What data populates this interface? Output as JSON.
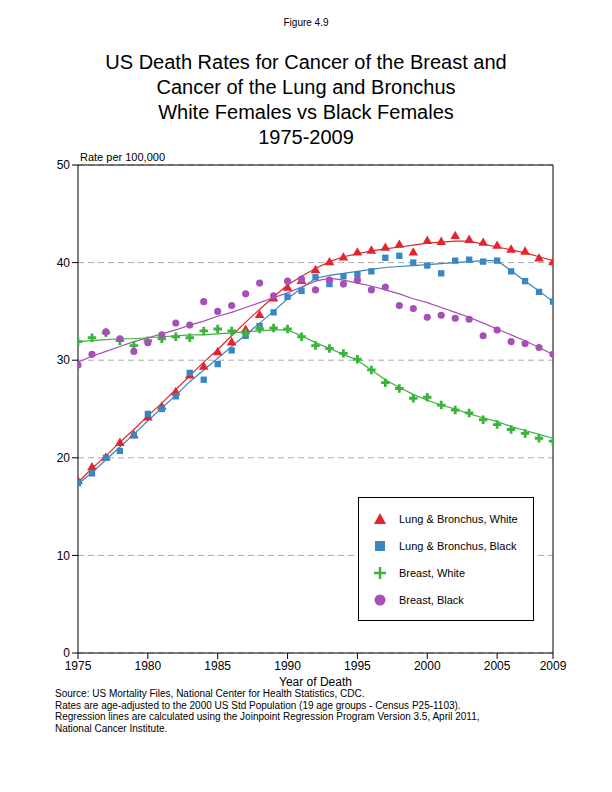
{
  "chart_data": {
    "type": "scatter",
    "figure_label": "Figure 4.9",
    "title": [
      "US Death Rates for Cancer of the Breast and",
      "Cancer of the Lung and Bronchus",
      "White Females vs Black Females",
      "1975-2009"
    ],
    "y_label": "Rate per 100,000",
    "x_label": "Year of Death",
    "notes": [
      "Source: US Mortality Files, National Center for Health Statistics, CDC.",
      "Rates are age-adjusted to the 2000 US Std Population (19 age groups - Census P25-1103).",
      "Regression lines are calculated using the Joinpoint Regression Program Version 3.5, April 2011,",
      "National Cancer Institute."
    ],
    "x": [
      1975,
      1976,
      1977,
      1978,
      1979,
      1980,
      1981,
      1982,
      1983,
      1984,
      1985,
      1986,
      1987,
      1988,
      1989,
      1990,
      1991,
      1992,
      1993,
      1994,
      1995,
      1996,
      1997,
      1998,
      1999,
      2000,
      2001,
      2002,
      2003,
      2004,
      2005,
      2006,
      2007,
      2008,
      2009
    ],
    "xlim": [
      1975,
      2009
    ],
    "xticks": [
      1975,
      1980,
      1985,
      1990,
      1995,
      2000,
      2005,
      2009
    ],
    "ylim": [
      0,
      50
    ],
    "yticks": [
      0,
      10,
      20,
      30,
      40,
      50
    ],
    "grid": true,
    "legend": "lower right",
    "series": [
      {
        "name": "Lung & Bronchus, White",
        "color": "#e3242b",
        "marker": "triangle",
        "values": [
          17.6,
          19.0,
          20.0,
          21.5,
          22.3,
          24.1,
          25.2,
          26.7,
          28.4,
          29.3,
          30.8,
          31.8,
          33.1,
          34.6,
          36.3,
          37.4,
          38.1,
          39.2,
          40.0,
          40.5,
          41.0,
          41.2,
          41.5,
          41.8,
          41.0,
          42.2,
          42.1,
          42.7,
          42.3,
          42.0,
          41.7,
          41.3,
          41.1,
          40.4,
          40.0
        ],
        "fit": [
          17.5,
          18.9,
          20.2,
          21.6,
          22.9,
          24.3,
          25.6,
          27.0,
          28.4,
          29.8,
          31.1,
          32.5,
          33.9,
          35.2,
          36.5,
          37.7,
          38.6,
          39.4,
          40.1,
          40.6,
          40.9,
          41.2,
          41.4,
          41.6,
          41.8,
          42.0,
          42.1,
          42.2,
          42.2,
          41.9,
          41.6,
          41.3,
          41.0,
          40.6,
          40.2
        ]
      },
      {
        "name": "Lung & Bronchus, Black",
        "color": "#3a86c0",
        "marker": "square",
        "values": [
          17.4,
          18.4,
          20.0,
          20.7,
          22.3,
          24.5,
          25.0,
          26.3,
          28.7,
          28.0,
          29.6,
          31.0,
          32.5,
          33.5,
          34.9,
          36.5,
          37.1,
          38.5,
          37.8,
          38.6,
          38.8,
          39.1,
          40.5,
          40.7,
          40.0,
          39.7,
          38.9,
          40.2,
          40.3,
          40.1,
          40.2,
          39.1,
          38.1,
          37.0,
          36.0
        ],
        "fit": [
          17.3,
          18.5,
          19.8,
          21.1,
          22.4,
          23.8,
          25.1,
          26.4,
          27.8,
          29.0,
          30.2,
          31.4,
          32.6,
          33.8,
          35.0,
          36.3,
          37.4,
          38.4,
          38.7,
          38.9,
          39.1,
          39.3,
          39.5,
          39.6,
          39.7,
          39.8,
          39.9,
          40.0,
          40.1,
          40.2,
          40.2,
          39.2,
          38.1,
          37.1,
          36.0
        ]
      },
      {
        "name": "Breast, White",
        "color": "#3cb33c",
        "marker": "cross",
        "values": [
          31.9,
          32.3,
          32.8,
          32.0,
          31.5,
          32.0,
          32.2,
          32.4,
          32.3,
          33.0,
          33.2,
          33.0,
          32.8,
          33.2,
          33.3,
          33.2,
          32.4,
          31.5,
          31.2,
          30.7,
          30.1,
          29.0,
          27.7,
          27.1,
          26.1,
          26.2,
          25.4,
          24.9,
          24.6,
          23.9,
          23.4,
          22.9,
          22.5,
          22.0,
          21.7
        ],
        "fit": [
          31.9,
          32.0,
          32.1,
          32.2,
          32.2,
          32.3,
          32.4,
          32.5,
          32.6,
          32.6,
          32.7,
          32.8,
          32.9,
          33.0,
          33.1,
          33.1,
          32.5,
          31.8,
          31.2,
          30.6,
          30.0,
          29.0,
          28.0,
          27.2,
          26.5,
          25.9,
          25.4,
          25.0,
          24.5,
          24.1,
          23.7,
          23.2,
          22.8,
          22.4,
          22.0
        ]
      },
      {
        "name": "Breast, Black",
        "color": "#a64fb6",
        "marker": "circle",
        "values": [
          29.5,
          30.6,
          32.9,
          32.2,
          30.9,
          31.8,
          32.6,
          33.8,
          33.6,
          36.0,
          35.0,
          35.6,
          36.8,
          37.9,
          36.6,
          38.1,
          38.3,
          37.2,
          38.2,
          37.8,
          38.2,
          37.2,
          37.5,
          35.6,
          35.3,
          34.4,
          34.6,
          34.3,
          34.2,
          32.5,
          33.1,
          31.9,
          31.7,
          31.3,
          30.6
        ],
        "fit": [
          29.8,
          30.4,
          30.9,
          31.4,
          31.9,
          32.3,
          32.7,
          33.1,
          33.6,
          34.0,
          34.5,
          34.9,
          35.4,
          35.9,
          36.4,
          36.9,
          37.5,
          38.1,
          38.4,
          38.2,
          37.9,
          37.6,
          37.2,
          36.8,
          36.3,
          35.9,
          35.4,
          34.9,
          34.4,
          33.8,
          33.2,
          32.6,
          32.0,
          31.3,
          30.6
        ]
      }
    ]
  }
}
